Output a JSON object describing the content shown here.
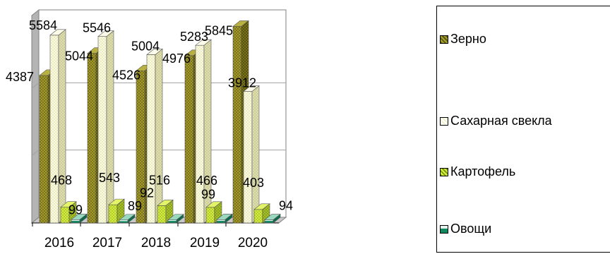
{
  "chart_data": {
    "type": "bar",
    "three_d": true,
    "categories": [
      "2016",
      "2017",
      "2018",
      "2019",
      "2020"
    ],
    "series": [
      {
        "name": "Зерно",
        "values": [
          4387,
          5044,
          4526,
          4976,
          5845
        ]
      },
      {
        "name": "Сахарная свекла",
        "values": [
          5584,
          5546,
          5004,
          5283,
          3912
        ]
      },
      {
        "name": "Картофель",
        "values": [
          468,
          543,
          516,
          466,
          403
        ]
      },
      {
        "name": "Овощи",
        "values": [
          99,
          89,
          92,
          99,
          94
        ]
      }
    ],
    "ylim": [
      0,
      6000
    ],
    "grid": true,
    "legend_position": "right",
    "colors": {
      "grain": "#8c8424",
      "sugar_beet": "#f0f0c0",
      "potato": "#c8e030",
      "vegetables": "#1a9a70",
      "back_wall": "#b4b4b4"
    }
  }
}
